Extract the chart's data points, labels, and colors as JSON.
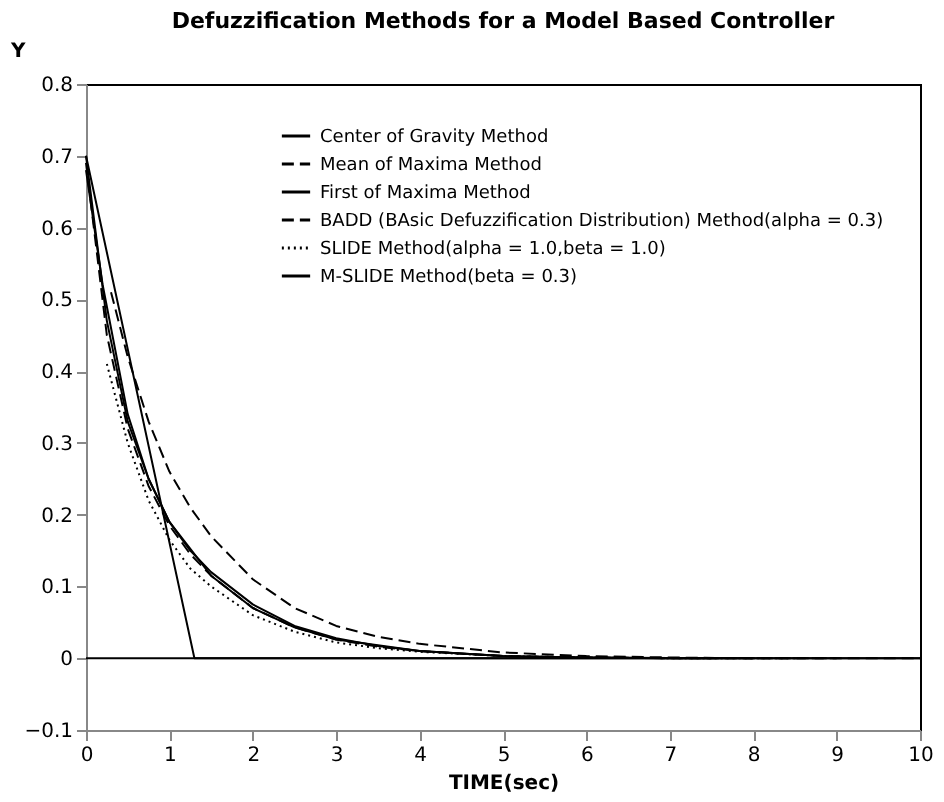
{
  "chart_data": {
    "type": "line",
    "title": "Defuzzification Methods for a Model Based Controller",
    "xlabel": "TIME(sec)",
    "ylabel": "Y",
    "xlim": [
      0,
      10
    ],
    "ylim": [
      -0.1,
      0.8
    ],
    "xticks": [
      0,
      1,
      2,
      3,
      4,
      5,
      6,
      7,
      8,
      9,
      10
    ],
    "yticks": [
      -0.1,
      0,
      0.1,
      0.2,
      0.3,
      0.4,
      0.5,
      0.6,
      0.7,
      0.8
    ],
    "grid": false,
    "legend": "top right",
    "marker": "none",
    "ref_lines": [
      {
        "axis": "y",
        "value": 0,
        "color": "#000000",
        "line_style": "solid"
      }
    ],
    "series": [
      {
        "name": "Center of Gravity Method",
        "color": "#000000",
        "line_style": "solid",
        "x": [
          0,
          0.25,
          0.5,
          0.75,
          1,
          1.25,
          1.5,
          2,
          2.5,
          3,
          3.5,
          4,
          5,
          6,
          7,
          8
        ],
        "values": [
          0.7,
          0.47,
          0.33,
          0.25,
          0.19,
          0.15,
          0.12,
          0.075,
          0.045,
          0.028,
          0.017,
          0.01,
          0.003,
          0.001,
          0,
          0
        ]
      },
      {
        "name": "Mean of Maxima Method",
        "color": "#000000",
        "line_style": "dashed",
        "x": [
          0,
          0.25,
          0.5,
          0.75,
          1,
          1.25,
          1.5,
          2,
          2.5,
          3,
          3.5,
          4,
          5,
          6,
          7,
          9
        ],
        "values": [
          0.69,
          0.45,
          0.32,
          0.24,
          0.185,
          0.145,
          0.115,
          0.07,
          0.043,
          0.026,
          0.016,
          0.01,
          0.003,
          0.001,
          0,
          0
        ]
      },
      {
        "name": "First of Maxima Method",
        "color": "#000000",
        "line_style": "solid",
        "x": [
          0,
          1.3,
          2,
          10
        ],
        "values": [
          0.7,
          0,
          0,
          0
        ]
      },
      {
        "name": "BADD (BAsic Defuzzification Distribution) Method(alpha = 0.3)",
        "color": "#000000",
        "line_style": "dashed",
        "x": [
          0.3,
          0.5,
          0.75,
          1,
          1.25,
          1.5,
          2,
          2.5,
          3,
          3.5,
          4,
          5,
          6,
          7,
          8,
          10
        ],
        "values": [
          0.51,
          0.42,
          0.33,
          0.26,
          0.21,
          0.17,
          0.11,
          0.07,
          0.045,
          0.03,
          0.02,
          0.008,
          0.003,
          0.001,
          0,
          0
        ]
      },
      {
        "name": "SLIDE Method(alpha = 1.0,beta = 1.0)",
        "color": "#000000",
        "line_style": "dotted",
        "x": [
          0.25,
          0.5,
          0.75,
          1,
          1.25,
          1.5,
          2,
          2.5,
          3,
          3.5,
          4,
          5,
          6,
          7,
          8.5
        ],
        "values": [
          0.41,
          0.3,
          0.22,
          0.165,
          0.125,
          0.1,
          0.06,
          0.037,
          0.022,
          0.014,
          0.009,
          0.003,
          0.001,
          0,
          0
        ]
      },
      {
        "name": "M-SLIDE Method(beta = 0.3)",
        "color": "#000000",
        "line_style": "solid",
        "x": [
          0,
          0.2,
          0.5,
          0.75,
          1,
          1.5,
          2,
          2.5,
          3,
          4,
          5,
          6,
          7.5
        ],
        "values": [
          0.68,
          0.52,
          0.34,
          0.25,
          0.19,
          0.115,
          0.07,
          0.043,
          0.026,
          0.01,
          0.003,
          0.001,
          0
        ]
      }
    ]
  }
}
